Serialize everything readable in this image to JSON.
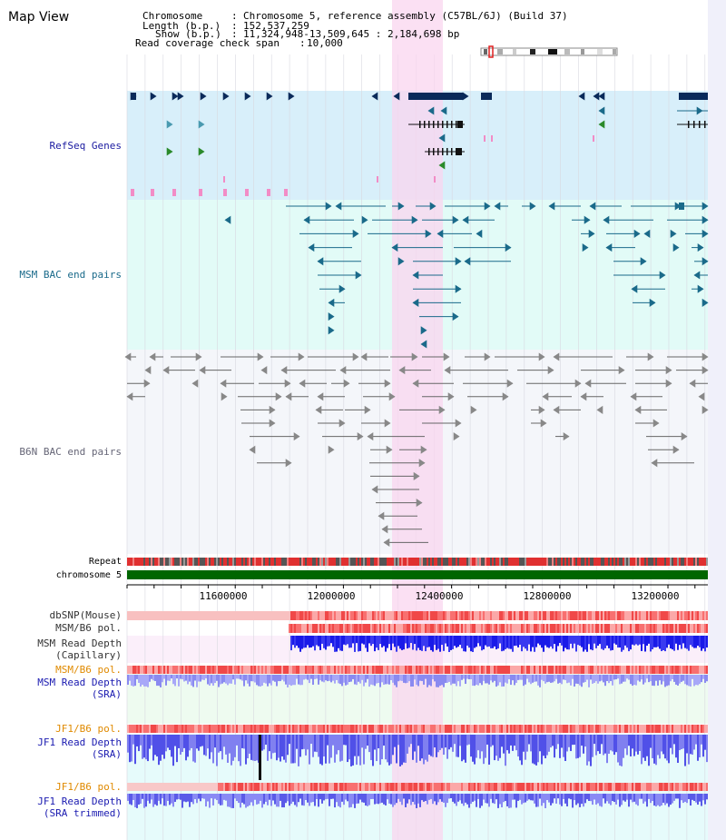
{
  "title": "Map View",
  "info": {
    "chromosome_key": "Chromosome",
    "chromosome_value": "Chromosome 5, reference assembly (C57BL/6J) (Build 37)",
    "length_key": "Length (b.p.)",
    "length_value": "152,537,259",
    "show_key": "Show (b.p.)",
    "show_value": "11,324,948-13,509,645 : 2,184,698 bp",
    "coverage_key": "Read coverage check span",
    "coverage_value": "10,000"
  },
  "view": {
    "start_bp": 11324948,
    "end_bp": 13509645,
    "highlight_start_bp": 12324948,
    "highlight_end_bp": 12509645
  },
  "axis": {
    "ticks": [
      "11600000",
      "12000000",
      "12400000",
      "12800000",
      "13200000"
    ]
  },
  "tracks": {
    "refseq": "RefSeq Genes",
    "msm_bac": "MSM BAC end pairs",
    "b6n_bac": "B6N BAC end pairs",
    "repeat": "Repeat",
    "chromosome": "chromosome 5",
    "dbsnp": "dbSNP(Mouse)",
    "msm_b6_pol_1": "MSM/B6 pol.",
    "msm_depth_cap_1": "MSM Read Depth",
    "msm_depth_cap_2": "(Capillary)",
    "msm_b6_pol_2": "MSM/B6 pol.",
    "msm_depth_sra_1": "MSM Read Depth",
    "msm_depth_sra_2": "(SRA)",
    "jf1_b6_pol_1": "JF1/B6 pol.",
    "jf1_depth_sra_1": "JF1 Read Depth",
    "jf1_depth_sra_2": "(SRA)",
    "jf1_b6_pol_2": "JF1/B6 pol.",
    "jf1_depth_trim_1": "JF1 Read Depth",
    "jf1_depth_trim_2": "(SRA trimmed)"
  },
  "colors": {
    "refseq_bg": "#d8effa",
    "msm_bac_bg": "#e2fbf7",
    "b6n_bac_bg": "#f4f6fa",
    "highlight": "#f9d5ef",
    "refseq_label": "#1a1aa0",
    "msm_label": "#1a6a8a",
    "b6n_label": "#666677",
    "pol_label": "#e08a00",
    "depth_label": "#1a1ab0",
    "chromosome_bar": "#006600",
    "gene_dark": "#0a2a5a",
    "gene_teal": "#1a6a8a",
    "gene_green": "#2a8a2a",
    "msm_line": "#1a6a8a",
    "b6n_line": "#666666",
    "pink_mark": "#f28cc6"
  }
}
